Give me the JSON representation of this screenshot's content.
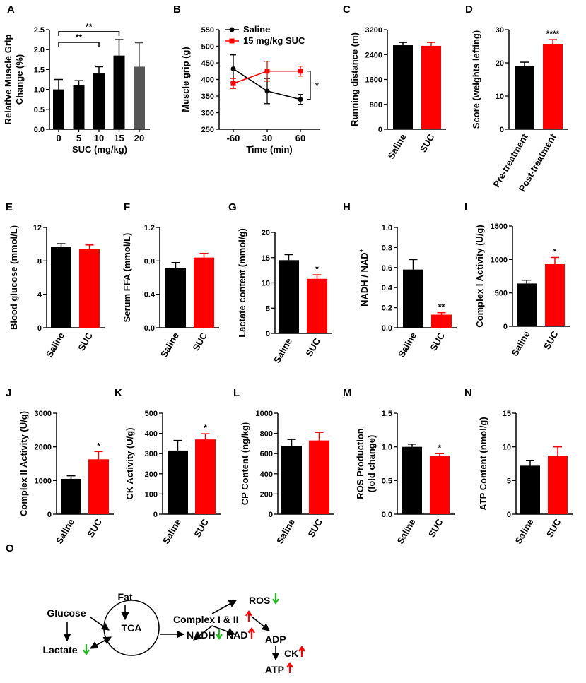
{
  "colors": {
    "saline": "#000000",
    "suc": "#ff0000",
    "up": "#ff0000",
    "down": "#22bb22",
    "grey": "#555555"
  },
  "chart_data": [
    {
      "panel": "A",
      "type": "bar",
      "title": "",
      "categories": [
        "0",
        "5",
        "10",
        "15",
        "20"
      ],
      "values": [
        1.0,
        1.1,
        1.4,
        1.85,
        1.57
      ],
      "errors": [
        0.25,
        0.12,
        0.17,
        0.4,
        0.6
      ],
      "colors": [
        "#000000",
        "#000000",
        "#000000",
        "#000000",
        "#555555"
      ],
      "ylabel": "Relative Muscle Grip Change (%)",
      "ylabel_lines": [
        "Relative Muscle Grip",
        "Change (%)"
      ],
      "xlabel": "SUC (mg/kg)",
      "ylim": [
        0,
        2.5
      ],
      "yticks": [
        "0.0",
        "0.5",
        "1.0",
        "1.5",
        "2.0",
        "2.5"
      ],
      "yticks_v": [
        0,
        0.5,
        1.0,
        1.5,
        2.0,
        2.5
      ],
      "brackets": [
        {
          "from": 0,
          "to": 2,
          "label": "**",
          "level": 2.18
        },
        {
          "from": 0,
          "to": 3,
          "label": "**",
          "level": 2.45
        }
      ]
    },
    {
      "panel": "B",
      "type": "line",
      "x": [
        "-60",
        "30",
        "60"
      ],
      "ylabel": "Muscle grip (g)",
      "xlabel": "Time (min)",
      "ylim": [
        250,
        550
      ],
      "yticks": [
        "250",
        "300",
        "350",
        "400",
        "450",
        "500",
        "550"
      ],
      "yticks_v": [
        250,
        300,
        350,
        400,
        450,
        500,
        550
      ],
      "series": [
        {
          "name": "Saline",
          "values": [
            432,
            365,
            340
          ],
          "errors": [
            42,
            38,
            15
          ]
        },
        {
          "name": "15 mg/kg SUC",
          "values": [
            388,
            425,
            425
          ],
          "errors": [
            15,
            30,
            15
          ]
        }
      ],
      "annotation": "*"
    },
    {
      "panel": "C",
      "type": "bar",
      "categories": [
        "Saline",
        "SUC"
      ],
      "values": [
        2700,
        2680
      ],
      "errors": [
        90,
        110
      ],
      "ylabel": "Running distance (m)",
      "ylim": [
        0,
        3200
      ],
      "yticks": [
        "0",
        "800",
        "1600",
        "2400",
        "3200"
      ],
      "yticks_v": [
        0,
        800,
        1600,
        2400,
        3200
      ],
      "sig": [
        "",
        ""
      ]
    },
    {
      "panel": "D",
      "type": "bar",
      "categories": [
        "Pre-treatment",
        "Post-treatment"
      ],
      "values": [
        19,
        25.7
      ],
      "errors": [
        1.2,
        1.3
      ],
      "ylabel": "Score (weights lefting)",
      "ylim": [
        0,
        30
      ],
      "yticks": [
        "0",
        "10",
        "20",
        "30"
      ],
      "yticks_v": [
        0,
        10,
        20,
        30
      ],
      "sig": [
        "",
        "****"
      ]
    },
    {
      "panel": "E",
      "type": "bar",
      "categories": [
        "Saline",
        "SUC"
      ],
      "values": [
        9.7,
        9.4
      ],
      "errors": [
        0.35,
        0.5
      ],
      "ylabel": "Blood glucose (mmol/L)",
      "ylim": [
        0,
        12
      ],
      "yticks": [
        "0",
        "4",
        "8",
        "12"
      ],
      "yticks_v": [
        0,
        4,
        8,
        12
      ],
      "sig": [
        "",
        ""
      ]
    },
    {
      "panel": "F",
      "type": "bar",
      "categories": [
        "Saline",
        "SUC"
      ],
      "values": [
        0.71,
        0.84
      ],
      "errors": [
        0.07,
        0.05
      ],
      "ylabel": "Serum FFA (mmol/L)",
      "ylim": [
        0,
        1.2
      ],
      "yticks": [
        "0.0",
        "0.4",
        "0.8",
        "1.2"
      ],
      "yticks_v": [
        0,
        0.4,
        0.8,
        1.2
      ],
      "sig": [
        "",
        ""
      ]
    },
    {
      "panel": "G",
      "type": "bar",
      "categories": [
        "Saline",
        "SUC"
      ],
      "values": [
        14.5,
        10.8
      ],
      "errors": [
        1.1,
        0.8
      ],
      "ylabel": "Lactate content (mmol/g)",
      "ylim": [
        0,
        20
      ],
      "yticks": [
        "0",
        "5",
        "10",
        "15",
        "20"
      ],
      "yticks_v": [
        0,
        5,
        10,
        15,
        20
      ],
      "sig": [
        "",
        "*"
      ]
    },
    {
      "panel": "H",
      "type": "bar",
      "categories": [
        "Saline",
        "SUC"
      ],
      "values": [
        0.58,
        0.13
      ],
      "errors": [
        0.1,
        0.02
      ],
      "ylabel": "NADH / NAD",
      "ylabel_sup": "+",
      "ylim": [
        0,
        1.0
      ],
      "yticks": [
        "0.0",
        "0.2",
        "0.4",
        "0.6",
        "0.8",
        "1.0"
      ],
      "yticks_v": [
        0,
        0.2,
        0.4,
        0.6,
        0.8,
        1.0
      ],
      "sig": [
        "",
        "**"
      ]
    },
    {
      "panel": "I",
      "type": "bar",
      "categories": [
        "Saline",
        "SUC"
      ],
      "values": [
        640,
        930
      ],
      "errors": [
        50,
        100
      ],
      "ylabel": "Complex I Activity  (U/g)",
      "ylim": [
        0,
        1500
      ],
      "yticks": [
        "0",
        "500",
        "1000",
        "1500"
      ],
      "yticks_v": [
        0,
        500,
        1000,
        1500
      ],
      "sig": [
        "",
        "*"
      ]
    },
    {
      "panel": "J",
      "type": "bar",
      "categories": [
        "Saline",
        "SUC"
      ],
      "values": [
        1050,
        1630
      ],
      "errors": [
        90,
        230
      ],
      "ylabel": "Complex II Activity  (U/g)",
      "ylim": [
        0,
        3000
      ],
      "yticks": [
        "0",
        "1000",
        "2000",
        "3000"
      ],
      "yticks_v": [
        0,
        1000,
        2000,
        3000
      ],
      "sig": [
        "",
        "*"
      ]
    },
    {
      "panel": "K",
      "type": "bar",
      "categories": [
        "Saline",
        "SUC"
      ],
      "values": [
        315,
        370
      ],
      "errors": [
        50,
        28
      ],
      "ylabel": "CK Activity (U/g)",
      "ylim": [
        0,
        500
      ],
      "yticks": [
        "0",
        "100",
        "200",
        "300",
        "400",
        "500"
      ],
      "yticks_v": [
        0,
        100,
        200,
        300,
        400,
        500
      ],
      "sig": [
        "",
        "*"
      ]
    },
    {
      "panel": "L",
      "type": "bar",
      "categories": [
        "Saline",
        "SUC"
      ],
      "values": [
        675,
        730
      ],
      "errors": [
        65,
        80
      ],
      "ylabel": "CP Content (ng/kg)",
      "ylim": [
        0,
        1000
      ],
      "yticks": [
        "0",
        "200",
        "400",
        "600",
        "800",
        "1000"
      ],
      "yticks_v": [
        0,
        200,
        400,
        600,
        800,
        1000
      ],
      "sig": [
        "",
        ""
      ]
    },
    {
      "panel": "M",
      "type": "bar",
      "categories": [
        "Saline",
        "SUC"
      ],
      "values": [
        1.0,
        0.87
      ],
      "errors": [
        0.04,
        0.03
      ],
      "ylabel": "ROS Production",
      "ylabel2": "(fold change)",
      "ylim": [
        0,
        1.5
      ],
      "yticks": [
        "0.0",
        "0.5",
        "1.0",
        "1.5"
      ],
      "yticks_v": [
        0,
        0.5,
        1.0,
        1.5
      ],
      "sig": [
        "",
        "*"
      ]
    },
    {
      "panel": "N",
      "type": "bar",
      "categories": [
        "Saline",
        "SUC"
      ],
      "values": [
        7.2,
        8.7
      ],
      "errors": [
        0.8,
        1.3
      ],
      "ylabel": "ATP Content (nmol/g)",
      "ylim": [
        0,
        15
      ],
      "yticks": [
        "0",
        "5",
        "10",
        "15"
      ],
      "yticks_v": [
        0,
        5,
        10,
        15
      ],
      "sig": [
        "",
        ""
      ]
    }
  ],
  "diagram": {
    "panel": "O",
    "nodes": {
      "fat": "Fat",
      "glucose": "Glucose",
      "lactate": "Lactate",
      "tca": "TCA",
      "nadh": "NADH",
      "nad": "NAD",
      "nad_sup": "+",
      "complex": "Complex I & II",
      "ros": "ROS",
      "adp": "ADP",
      "ck": "CK",
      "atp": "ATP"
    }
  }
}
